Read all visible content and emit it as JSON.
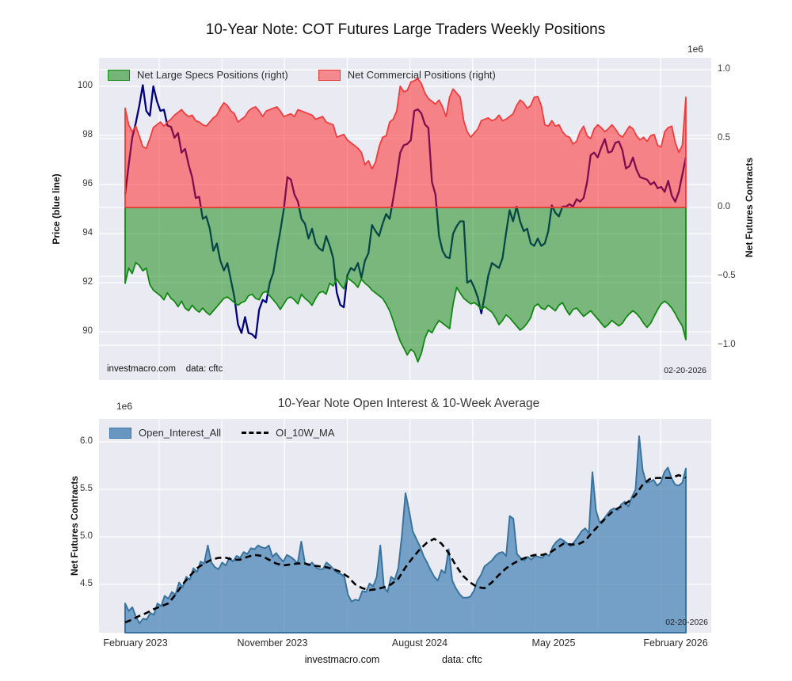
{
  "colors": {
    "axes_background": "#eaeaf2",
    "grid": "#ffffff",
    "price_line": "#000080",
    "specs_green": "#118811",
    "commercials_red": "#f03c3c",
    "open_interest_blue": "#4682b4",
    "ma_black": "#000000"
  },
  "top_chart": {
    "title": "10-Year Note: COT Futures Large Traders Weekly Positions",
    "offset_label": "1e6",
    "left_axis_label": "Price (blue line)",
    "right_axis_label": "Net Futures Contracts",
    "left_ticks": [
      "100",
      "98",
      "96",
      "94",
      "92",
      "90"
    ],
    "right_ticks": [
      "1.0",
      "0.5",
      "0.0",
      "−0.5",
      "−1.0"
    ],
    "legend": [
      "Net Large Specs Positions (right)",
      "Net Commercial Positions (right)"
    ],
    "watermark": "investmacro.com    data: cftc",
    "date_label": "02-20-2026"
  },
  "bottom_chart": {
    "title": "10-Year Note Open Interest & 10-Week Average",
    "offset_label": "1e6",
    "left_axis_label": "Net Futures Contracts",
    "left_ticks": [
      "6.0",
      "5.5",
      "5.0",
      "4.5"
    ],
    "x_ticks": [
      "February 2023",
      "November 2023",
      "August 2024",
      "May 2025",
      "February 2026"
    ],
    "legend": [
      "Open_Interest_All",
      "OI_10W_MA"
    ],
    "date_label": "02-20-2026"
  },
  "footer": {
    "site": "investmacro.com",
    "source": "data: cftc"
  },
  "chart_data": [
    {
      "type": "line+area",
      "title": "10-Year Note: COT Futures Large Traders Weekly Positions",
      "x_range": [
        "February 2023",
        "2026-02-20"
      ],
      "x_units": "weekly",
      "left_axis": {
        "label": "Price (blue line)",
        "ylim": [
          88.0,
          101.2
        ],
        "ticks": [
          100,
          98,
          96,
          94,
          92,
          90
        ]
      },
      "right_axis": {
        "label": "Net Futures Contracts (1e6)",
        "ylim": [
          -1.25,
          1.09
        ],
        "ticks": [
          1.0,
          0.5,
          0.0,
          -0.5,
          -1.0
        ]
      },
      "legend_position": "upper left",
      "grid": true,
      "series": [
        {
          "name": "Price",
          "axis": "left",
          "style": "line",
          "color": "#000080",
          "values": [
            95.6,
            96.8,
            97.9,
            98.5,
            99.2,
            100.05,
            99.0,
            98.8,
            100.0,
            99.4,
            99.0,
            99.05,
            98.4,
            98.35,
            97.9,
            98.1,
            97.3,
            97.45,
            96.8,
            96.3,
            95.45,
            95.5,
            94.6,
            94.7,
            94.2,
            93.3,
            93.6,
            92.9,
            92.5,
            92.8,
            92.1,
            91.4,
            90.3,
            89.95,
            90.6,
            89.95,
            89.9,
            89.75,
            90.9,
            91.3,
            91.2,
            92.0,
            92.4,
            93.3,
            94.1,
            95.0,
            96.3,
            96.2,
            95.6,
            95.3,
            94.6,
            94.4,
            93.8,
            94.2,
            93.6,
            93.4,
            93.3,
            93.9,
            93.5,
            93.0,
            91.6,
            91.1,
            91.0,
            92.3,
            92.6,
            92.5,
            92.8,
            92.2,
            92.9,
            93.2,
            94.35,
            94.1,
            93.9,
            94.4,
            94.8,
            94.6,
            95.4,
            96.3,
            97.3,
            97.6,
            97.65,
            97.8,
            99.0,
            99.06,
            98.9,
            98.45,
            98.3,
            96.1,
            95.6,
            93.9,
            93.3,
            93.05,
            93.0,
            94.0,
            94.3,
            94.5,
            94.5,
            92.0,
            92.1,
            91.8,
            91.4,
            90.75,
            91.5,
            92.3,
            92.8,
            92.7,
            92.6,
            93.0,
            94.0,
            94.95,
            94.5,
            95.1,
            94.5,
            94.1,
            94.2,
            93.6,
            93.5,
            93.8,
            93.5,
            93.6,
            94.1,
            95.15,
            94.85,
            94.7,
            95.1,
            95.1,
            95.2,
            95.1,
            95.4,
            95.3,
            95.45,
            96.1,
            97.2,
            97.3,
            97.1,
            97.5,
            97.85,
            97.3,
            97.35,
            97.7,
            97.75,
            97.4,
            96.65,
            96.75,
            97.1,
            96.6,
            96.3,
            96.25,
            96.2,
            96.0,
            96.1,
            95.85,
            95.9,
            95.7,
            96.15,
            95.55,
            95.3,
            95.7,
            96.4,
            97.1
          ]
        },
        {
          "name": "Net Large Specs Positions (right)",
          "axis": "right",
          "style": "area",
          "color": "#118811",
          "values": [
            -0.55,
            -0.44,
            -0.48,
            -0.4,
            -0.42,
            -0.46,
            -0.44,
            -0.56,
            -0.6,
            -0.62,
            -0.64,
            -0.67,
            -0.62,
            -0.66,
            -0.68,
            -0.72,
            -0.68,
            -0.73,
            -0.75,
            -0.71,
            -0.74,
            -0.76,
            -0.73,
            -0.76,
            -0.78,
            -0.75,
            -0.72,
            -0.69,
            -0.66,
            -0.65,
            -0.67,
            -0.69,
            -0.71,
            -0.69,
            -0.68,
            -0.64,
            -0.63,
            -0.66,
            -0.67,
            -0.62,
            -0.61,
            -0.64,
            -0.67,
            -0.7,
            -0.74,
            -0.7,
            -0.66,
            -0.65,
            -0.67,
            -0.7,
            -0.63,
            -0.66,
            -0.68,
            -0.71,
            -0.66,
            -0.62,
            -0.61,
            -0.63,
            -0.55,
            -0.57,
            -0.52,
            -0.56,
            -0.59,
            -0.51,
            -0.53,
            -0.55,
            -0.58,
            -0.52,
            -0.55,
            -0.57,
            -0.6,
            -0.62,
            -0.64,
            -0.66,
            -0.7,
            -0.75,
            -0.82,
            -0.9,
            -0.97,
            -1.02,
            -1.07,
            -1.03,
            -1.05,
            -1.12,
            -1.06,
            -0.95,
            -0.89,
            -0.91,
            -0.86,
            -0.82,
            -0.84,
            -0.86,
            -0.88,
            -0.7,
            -0.58,
            -0.62,
            -0.66,
            -0.68,
            -0.7,
            -0.69,
            -0.71,
            -0.74,
            -0.72,
            -0.74,
            -0.76,
            -0.8,
            -0.85,
            -0.82,
            -0.78,
            -0.8,
            -0.83,
            -0.86,
            -0.89,
            -0.87,
            -0.84,
            -0.8,
            -0.72,
            -0.7,
            -0.73,
            -0.74,
            -0.71,
            -0.73,
            -0.75,
            -0.71,
            -0.69,
            -0.74,
            -0.78,
            -0.74,
            -0.73,
            -0.76,
            -0.79,
            -0.77,
            -0.75,
            -0.78,
            -0.81,
            -0.84,
            -0.87,
            -0.85,
            -0.82,
            -0.84,
            -0.86,
            -0.84,
            -0.8,
            -0.77,
            -0.75,
            -0.77,
            -0.8,
            -0.84,
            -0.87,
            -0.84,
            -0.79,
            -0.74,
            -0.7,
            -0.68,
            -0.7,
            -0.73,
            -0.77,
            -0.82,
            -0.86,
            -0.96
          ]
        },
        {
          "name": "Net Commercial Positions (right)",
          "axis": "right",
          "style": "area",
          "color": "#f03c3c",
          "values": [
            0.72,
            0.6,
            0.55,
            0.59,
            0.52,
            0.44,
            0.43,
            0.5,
            0.58,
            0.6,
            0.62,
            0.59,
            0.62,
            0.64,
            0.67,
            0.69,
            0.71,
            0.68,
            0.66,
            0.67,
            0.63,
            0.62,
            0.6,
            0.59,
            0.62,
            0.65,
            0.67,
            0.72,
            0.76,
            0.74,
            0.7,
            0.68,
            0.62,
            0.64,
            0.66,
            0.7,
            0.72,
            0.73,
            0.7,
            0.66,
            0.7,
            0.71,
            0.72,
            0.73,
            0.7,
            0.66,
            0.67,
            0.68,
            0.66,
            0.71,
            0.7,
            0.69,
            0.68,
            0.67,
            0.64,
            0.65,
            0.66,
            0.62,
            0.61,
            0.6,
            0.51,
            0.52,
            0.53,
            0.49,
            0.47,
            0.45,
            0.43,
            0.4,
            0.31,
            0.34,
            0.28,
            0.33,
            0.44,
            0.51,
            0.52,
            0.62,
            0.64,
            0.7,
            0.88,
            0.84,
            0.85,
            0.91,
            0.92,
            0.935,
            0.9,
            0.83,
            0.79,
            0.77,
            0.75,
            0.78,
            0.73,
            0.66,
            0.8,
            0.86,
            0.83,
            0.8,
            0.63,
            0.55,
            0.51,
            0.54,
            0.57,
            0.63,
            0.64,
            0.65,
            0.63,
            0.64,
            0.67,
            0.63,
            0.64,
            0.66,
            0.68,
            0.74,
            0.78,
            0.76,
            0.72,
            0.74,
            0.8,
            0.805,
            0.74,
            0.6,
            0.59,
            0.63,
            0.59,
            0.6,
            0.55,
            0.52,
            0.51,
            0.46,
            0.48,
            0.55,
            0.59,
            0.52,
            0.5,
            0.57,
            0.6,
            0.58,
            0.55,
            0.57,
            0.6,
            0.57,
            0.53,
            0.51,
            0.55,
            0.59,
            0.57,
            0.52,
            0.49,
            0.51,
            0.48,
            0.52,
            0.53,
            0.45,
            0.44,
            0.55,
            0.58,
            0.59,
            0.47,
            0.4,
            0.45,
            0.8
          ]
        }
      ]
    },
    {
      "type": "area+line",
      "title": "10-Year Note Open Interest & 10-Week Average",
      "x_range": [
        "February 2023",
        "2026-02-20"
      ],
      "x_units": "weekly",
      "x_tick_labels": [
        "February 2023",
        "November 2023",
        "August 2024",
        "May 2025",
        "February 2026"
      ],
      "ylabel": "Net Futures Contracts (1e6)",
      "ylim": [
        3.99,
        6.24
      ],
      "yticks": [
        6.0,
        5.5,
        5.0,
        4.5
      ],
      "legend_position": "upper left",
      "grid": true,
      "series": [
        {
          "name": "Open_Interest_All",
          "style": "area",
          "color": "#4682b4",
          "values": [
            4.3,
            4.22,
            4.26,
            4.16,
            4.09,
            4.14,
            4.13,
            4.2,
            4.18,
            4.3,
            4.27,
            4.38,
            4.35,
            4.42,
            4.39,
            4.52,
            4.47,
            4.58,
            4.55,
            4.67,
            4.63,
            4.74,
            4.72,
            4.91,
            4.73,
            4.68,
            4.66,
            4.73,
            4.7,
            4.78,
            4.74,
            4.8,
            4.78,
            4.84,
            4.82,
            4.88,
            4.87,
            4.91,
            4.89,
            4.88,
            4.91,
            4.79,
            4.83,
            4.78,
            4.74,
            4.81,
            4.79,
            4.76,
            4.72,
            4.95,
            4.73,
            4.7,
            4.73,
            4.68,
            4.66,
            4.66,
            4.73,
            4.7,
            4.66,
            4.62,
            4.61,
            4.58,
            4.39,
            4.32,
            4.34,
            4.33,
            4.43,
            4.42,
            4.51,
            4.48,
            4.58,
            4.91,
            4.47,
            4.42,
            4.58,
            4.55,
            4.67,
            5.02,
            5.46,
            5.28,
            5.06,
            4.98,
            4.9,
            4.8,
            4.73,
            4.65,
            4.58,
            4.54,
            4.65,
            4.62,
            4.87,
            4.54,
            4.46,
            4.4,
            4.36,
            4.36,
            4.37,
            4.43,
            4.54,
            4.6,
            4.69,
            4.72,
            4.75,
            4.8,
            4.83,
            4.84,
            4.8,
            5.22,
            5.19,
            4.82,
            4.78,
            4.75,
            4.79,
            4.76,
            4.8,
            4.79,
            4.78,
            4.82,
            4.8,
            4.9,
            4.95,
            4.98,
            4.96,
            4.93,
            4.9,
            4.95,
            5.0,
            5.06,
            5.09,
            5.04,
            5.68,
            5.28,
            5.15,
            5.18,
            5.23,
            5.28,
            5.3,
            5.28,
            5.34,
            5.37,
            5.32,
            5.42,
            5.5,
            6.06,
            5.7,
            5.57,
            5.58,
            5.6,
            5.54,
            5.57,
            5.68,
            5.73,
            5.62,
            5.55,
            5.54,
            5.57,
            5.72
          ]
        },
        {
          "name": "OI_10W_MA",
          "style": "dashed-line",
          "color": "#000000",
          "values": [
            4.1,
            4.13,
            4.17,
            4.2,
            4.24,
            4.27,
            4.3,
            4.39,
            4.5,
            4.59,
            4.67,
            4.72,
            4.76,
            4.78,
            4.78,
            4.76,
            4.76,
            4.79,
            4.81,
            4.8,
            4.76,
            4.72,
            4.7,
            4.71,
            4.72,
            4.72,
            4.7,
            4.69,
            4.68,
            4.66,
            4.63,
            4.58,
            4.5,
            4.46,
            4.44,
            4.45,
            4.47,
            4.5,
            4.56,
            4.68,
            4.78,
            4.87,
            4.94,
            4.98,
            4.93,
            4.83,
            4.7,
            4.59,
            4.52,
            4.47,
            4.46,
            4.52,
            4.6,
            4.67,
            4.72,
            4.76,
            4.79,
            4.81,
            4.81,
            4.83,
            4.88,
            4.93,
            4.92,
            4.92,
            4.96,
            5.05,
            5.13,
            5.21,
            5.28,
            5.32,
            5.37,
            5.44,
            5.55,
            5.61,
            5.62,
            5.62,
            5.62,
            5.65,
            5.62
          ]
        }
      ]
    }
  ]
}
